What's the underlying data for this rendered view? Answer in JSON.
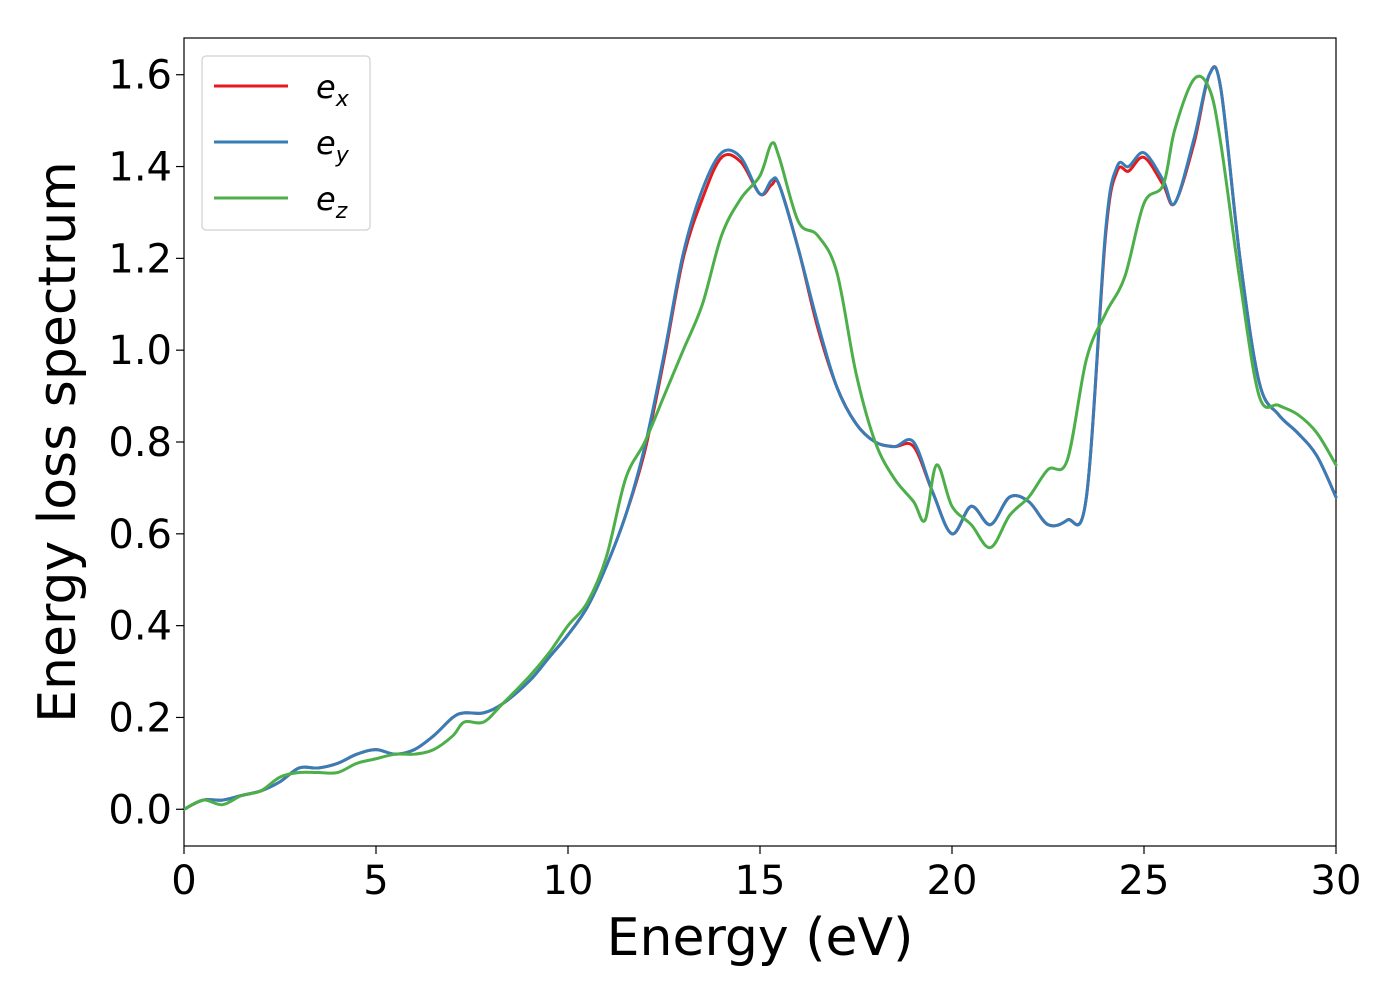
{
  "chart_data": {
    "type": "line",
    "xlabel": "Energy (eV)",
    "ylabel": "Energy loss spectrum",
    "xlim": [
      0,
      30
    ],
    "ylim": [
      -0.08,
      1.68
    ],
    "xticks": [
      0,
      5,
      10,
      15,
      20,
      25,
      30
    ],
    "xtick_labels": [
      "0",
      "5",
      "10",
      "15",
      "20",
      "25",
      "30"
    ],
    "yticks": [
      0.0,
      0.2,
      0.4,
      0.6,
      0.8,
      1.0,
      1.2,
      1.4,
      1.6
    ],
    "ytick_labels": [
      "0.0",
      "0.2",
      "0.4",
      "0.6",
      "0.8",
      "1.0",
      "1.2",
      "1.4",
      "1.6"
    ],
    "grid": false,
    "legend_position": "top-left",
    "series": [
      {
        "name": "e",
        "subscript": "x",
        "color": "#e41a1c",
        "x": [
          0,
          0.5,
          1,
          1.5,
          2,
          2.5,
          3,
          3.5,
          4,
          4.5,
          5,
          5.5,
          6,
          6.5,
          7,
          7.3,
          7.8,
          8.3,
          9,
          9.5,
          10,
          10.5,
          11,
          11.5,
          12,
          12.5,
          13,
          13.5,
          14,
          14.5,
          15,
          15.3,
          15.5,
          16,
          16.5,
          17,
          17.5,
          18,
          18.5,
          19,
          19.5,
          20,
          20.5,
          21,
          21.5,
          22,
          22.5,
          23,
          23.5,
          24,
          24.3,
          24.6,
          25,
          25.5,
          25.8,
          26.3,
          26.7,
          27,
          27.5,
          28,
          28.5,
          29,
          29.5,
          30
        ],
        "y": [
          0.0,
          0.02,
          0.02,
          0.03,
          0.04,
          0.06,
          0.09,
          0.09,
          0.1,
          0.12,
          0.13,
          0.12,
          0.13,
          0.16,
          0.2,
          0.21,
          0.21,
          0.23,
          0.28,
          0.33,
          0.38,
          0.44,
          0.53,
          0.64,
          0.78,
          0.98,
          1.2,
          1.33,
          1.42,
          1.41,
          1.34,
          1.36,
          1.36,
          1.22,
          1.05,
          0.92,
          0.84,
          0.8,
          0.79,
          0.79,
          0.69,
          0.6,
          0.66,
          0.62,
          0.68,
          0.67,
          0.62,
          0.63,
          0.68,
          1.25,
          1.39,
          1.39,
          1.42,
          1.36,
          1.32,
          1.45,
          1.6,
          1.57,
          1.2,
          0.93,
          0.86,
          0.82,
          0.77,
          0.68
        ]
      },
      {
        "name": "e",
        "subscript": "y",
        "color": "#377eb8",
        "x": [
          0,
          0.5,
          1,
          1.5,
          2,
          2.5,
          3,
          3.5,
          4,
          4.5,
          5,
          5.5,
          6,
          6.5,
          7,
          7.3,
          7.8,
          8.3,
          9,
          9.5,
          10,
          10.5,
          11,
          11.5,
          12,
          12.5,
          13,
          13.5,
          14,
          14.5,
          15,
          15.3,
          15.5,
          16,
          16.5,
          17,
          17.5,
          18,
          18.5,
          19,
          19.5,
          20,
          20.5,
          21,
          21.5,
          22,
          22.5,
          23,
          23.5,
          24,
          24.3,
          24.6,
          25,
          25.5,
          25.8,
          26.3,
          26.7,
          27,
          27.5,
          28,
          28.5,
          29,
          29.5,
          30
        ],
        "y": [
          0.0,
          0.02,
          0.02,
          0.03,
          0.04,
          0.06,
          0.09,
          0.09,
          0.1,
          0.12,
          0.13,
          0.12,
          0.13,
          0.16,
          0.2,
          0.21,
          0.21,
          0.23,
          0.28,
          0.33,
          0.38,
          0.44,
          0.53,
          0.64,
          0.79,
          0.99,
          1.21,
          1.35,
          1.43,
          1.42,
          1.34,
          1.37,
          1.36,
          1.22,
          1.06,
          0.92,
          0.84,
          0.8,
          0.79,
          0.8,
          0.69,
          0.6,
          0.66,
          0.62,
          0.68,
          0.67,
          0.62,
          0.63,
          0.68,
          1.26,
          1.4,
          1.4,
          1.43,
          1.37,
          1.32,
          1.46,
          1.6,
          1.57,
          1.2,
          0.93,
          0.86,
          0.82,
          0.77,
          0.68
        ]
      },
      {
        "name": "e",
        "subscript": "z",
        "color": "#4daf4a",
        "x": [
          0,
          0.5,
          1,
          1.5,
          2,
          2.5,
          3,
          3.5,
          4,
          4.5,
          5,
          5.5,
          6,
          6.5,
          7,
          7.3,
          7.8,
          8.3,
          9,
          9.5,
          10,
          10.5,
          11,
          11.5,
          12,
          12.5,
          13,
          13.5,
          14,
          14.5,
          15,
          15.3,
          15.5,
          16,
          16.5,
          17,
          17.5,
          18,
          18.5,
          19,
          19.3,
          19.6,
          20,
          20.5,
          21,
          21.5,
          22,
          22.5,
          23,
          23.5,
          24,
          24.5,
          25,
          25.5,
          25.8,
          26.3,
          26.7,
          27,
          27.5,
          28,
          28.5,
          29,
          29.5,
          30
        ],
        "y": [
          0.0,
          0.02,
          0.01,
          0.03,
          0.04,
          0.07,
          0.08,
          0.08,
          0.08,
          0.1,
          0.11,
          0.12,
          0.12,
          0.13,
          0.16,
          0.19,
          0.19,
          0.23,
          0.29,
          0.34,
          0.4,
          0.45,
          0.55,
          0.72,
          0.8,
          0.9,
          1.0,
          1.1,
          1.25,
          1.33,
          1.38,
          1.45,
          1.42,
          1.28,
          1.25,
          1.17,
          0.95,
          0.8,
          0.72,
          0.67,
          0.63,
          0.75,
          0.66,
          0.62,
          0.57,
          0.64,
          0.68,
          0.74,
          0.76,
          0.98,
          1.08,
          1.16,
          1.32,
          1.36,
          1.48,
          1.59,
          1.57,
          1.45,
          1.15,
          0.9,
          0.88,
          0.86,
          0.82,
          0.75
        ]
      }
    ]
  }
}
